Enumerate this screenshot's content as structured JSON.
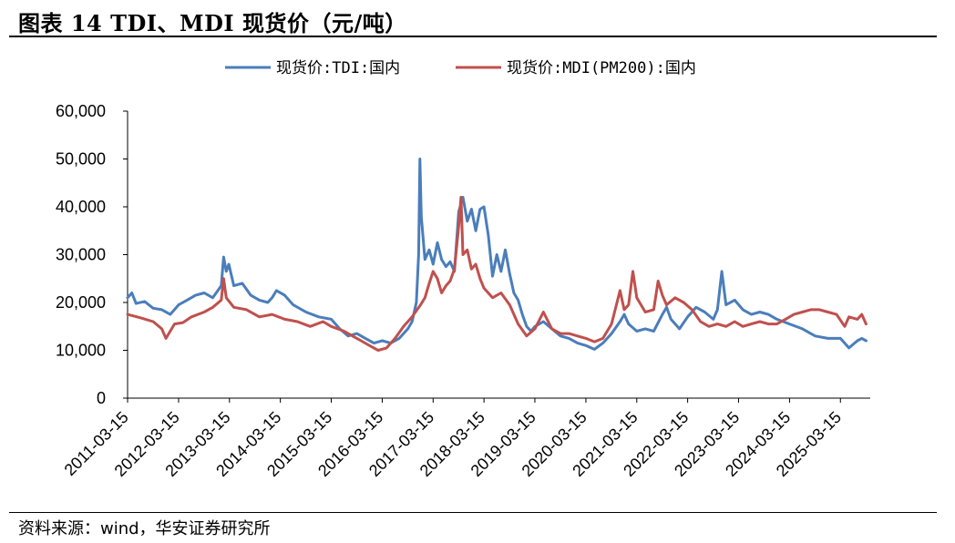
{
  "header": {
    "title": "图表 14 TDI、MDI 现货价（元/吨）"
  },
  "footer": {
    "source": "资料来源：wind，华安证券研究所"
  },
  "chart_data": {
    "type": "line",
    "title": "图表 14 TDI、MDI 现货价（元/吨）",
    "xlabel": "",
    "ylabel": "",
    "ylim": [
      0,
      60000
    ],
    "xlim": [
      "2011-03-15",
      "2025-10-15"
    ],
    "yticks": [
      "0",
      "10,000",
      "20,000",
      "30,000",
      "40,000",
      "50,000",
      "60,000"
    ],
    "xticks": [
      "2011-03-15",
      "2012-03-15",
      "2013-03-15",
      "2014-03-15",
      "2015-03-15",
      "2016-03-15",
      "2017-03-15",
      "2018-03-15",
      "2019-03-15",
      "2020-03-15",
      "2021-03-15",
      "2022-03-15",
      "2023-03-15",
      "2024-03-15",
      "2025-03-15"
    ],
    "grid": false,
    "legend_position": "top",
    "series": [
      {
        "name": "现货价:TDI:国内",
        "color": "#4a7ebb",
        "points": [
          [
            "2011-03-15",
            21000
          ],
          [
            "2011-04-15",
            22000
          ],
          [
            "2011-05-15",
            19800
          ],
          [
            "2011-07-15",
            20200
          ],
          [
            "2011-09-15",
            18800
          ],
          [
            "2011-11-15",
            18500
          ],
          [
            "2012-01-15",
            17500
          ],
          [
            "2012-03-15",
            19500
          ],
          [
            "2012-05-15",
            20500
          ],
          [
            "2012-07-15",
            21500
          ],
          [
            "2012-09-15",
            22000
          ],
          [
            "2012-11-15",
            21000
          ],
          [
            "2013-01-15",
            23500
          ],
          [
            "2013-02-01",
            29500
          ],
          [
            "2013-02-20",
            26500
          ],
          [
            "2013-03-10",
            28000
          ],
          [
            "2013-04-15",
            23500
          ],
          [
            "2013-06-15",
            24000
          ],
          [
            "2013-08-15",
            21500
          ],
          [
            "2013-10-15",
            20500
          ],
          [
            "2013-12-15",
            20000
          ],
          [
            "2014-01-15",
            21000
          ],
          [
            "2014-02-15",
            22500
          ],
          [
            "2014-04-15",
            21500
          ],
          [
            "2014-06-15",
            19500
          ],
          [
            "2014-09-15",
            18000
          ],
          [
            "2014-12-15",
            17000
          ],
          [
            "2015-03-15",
            16500
          ],
          [
            "2015-05-15",
            14500
          ],
          [
            "2015-07-15",
            13000
          ],
          [
            "2015-09-15",
            13500
          ],
          [
            "2015-11-15",
            12500
          ],
          [
            "2016-01-15",
            11500
          ],
          [
            "2016-03-15",
            12000
          ],
          [
            "2016-05-15",
            11500
          ],
          [
            "2016-07-15",
            12500
          ],
          [
            "2016-09-15",
            14500
          ],
          [
            "2016-10-15",
            16000
          ],
          [
            "2016-11-15",
            20000
          ],
          [
            "2016-12-01",
            30000
          ],
          [
            "2016-12-10",
            50000
          ],
          [
            "2016-12-20",
            38000
          ],
          [
            "2017-01-15",
            29000
          ],
          [
            "2017-02-15",
            31000
          ],
          [
            "2017-03-15",
            28000
          ],
          [
            "2017-04-15",
            32500
          ],
          [
            "2017-05-15",
            29000
          ],
          [
            "2017-06-15",
            27500
          ],
          [
            "2017-07-15",
            28500
          ],
          [
            "2017-08-15",
            26500
          ],
          [
            "2017-09-15",
            39000
          ],
          [
            "2017-10-15",
            42000
          ],
          [
            "2017-11-15",
            37000
          ],
          [
            "2017-12-15",
            39500
          ],
          [
            "2018-01-15",
            35000
          ],
          [
            "2018-02-15",
            39500
          ],
          [
            "2018-03-15",
            40000
          ],
          [
            "2018-04-15",
            34000
          ],
          [
            "2018-05-15",
            25500
          ],
          [
            "2018-06-15",
            30000
          ],
          [
            "2018-07-15",
            26500
          ],
          [
            "2018-08-15",
            31000
          ],
          [
            "2018-09-15",
            26000
          ],
          [
            "2018-10-15",
            22000
          ],
          [
            "2018-11-15",
            20500
          ],
          [
            "2018-12-15",
            17500
          ],
          [
            "2019-01-15",
            15000
          ],
          [
            "2019-02-15",
            14000
          ],
          [
            "2019-03-15",
            15000
          ],
          [
            "2019-05-15",
            16000
          ],
          [
            "2019-07-15",
            14500
          ],
          [
            "2019-09-15",
            13000
          ],
          [
            "2019-11-15",
            12500
          ],
          [
            "2020-01-15",
            11500
          ],
          [
            "2020-03-15",
            11000
          ],
          [
            "2020-05-15",
            10200
          ],
          [
            "2020-07-15",
            11500
          ],
          [
            "2020-09-15",
            13500
          ],
          [
            "2020-11-15",
            16000
          ],
          [
            "2020-12-15",
            17500
          ],
          [
            "2021-01-15",
            15500
          ],
          [
            "2021-03-15",
            14000
          ],
          [
            "2021-05-15",
            14500
          ],
          [
            "2021-07-15",
            14000
          ],
          [
            "2021-09-15",
            17500
          ],
          [
            "2021-10-15",
            19000
          ],
          [
            "2021-11-15",
            16500
          ],
          [
            "2022-01-15",
            14500
          ],
          [
            "2022-03-15",
            17000
          ],
          [
            "2022-05-15",
            19000
          ],
          [
            "2022-07-15",
            18000
          ],
          [
            "2022-09-15",
            16500
          ],
          [
            "2022-10-15",
            18500
          ],
          [
            "2022-11-15",
            26500
          ],
          [
            "2022-12-15",
            19500
          ],
          [
            "2023-02-15",
            20500
          ],
          [
            "2023-04-15",
            18500
          ],
          [
            "2023-06-15",
            17500
          ],
          [
            "2023-08-15",
            18000
          ],
          [
            "2023-10-15",
            17500
          ],
          [
            "2023-12-15",
            16500
          ],
          [
            "2024-03-15",
            15500
          ],
          [
            "2024-06-15",
            14500
          ],
          [
            "2024-09-15",
            13000
          ],
          [
            "2024-12-15",
            12500
          ],
          [
            "2025-03-15",
            12500
          ],
          [
            "2025-05-15",
            10500
          ],
          [
            "2025-07-15",
            12000
          ],
          [
            "2025-08-15",
            12500
          ],
          [
            "2025-09-15",
            12000
          ]
        ]
      },
      {
        "name": "现货价:MDI(PM200):国内",
        "color": "#c0504d",
        "points": [
          [
            "2011-03-15",
            17500
          ],
          [
            "2011-06-15",
            16800
          ],
          [
            "2011-09-15",
            16000
          ],
          [
            "2011-11-15",
            14500
          ],
          [
            "2011-12-15",
            12500
          ],
          [
            "2012-02-15",
            15500
          ],
          [
            "2012-04-15",
            15800
          ],
          [
            "2012-06-15",
            17000
          ],
          [
            "2012-09-15",
            18000
          ],
          [
            "2012-11-15",
            19000
          ],
          [
            "2013-01-15",
            20500
          ],
          [
            "2013-02-01",
            25000
          ],
          [
            "2013-02-20",
            21000
          ],
          [
            "2013-04-15",
            19000
          ],
          [
            "2013-07-15",
            18500
          ],
          [
            "2013-10-15",
            17000
          ],
          [
            "2014-01-15",
            17500
          ],
          [
            "2014-04-15",
            16500
          ],
          [
            "2014-07-15",
            16000
          ],
          [
            "2014-10-15",
            15000
          ],
          [
            "2015-01-15",
            16000
          ],
          [
            "2015-03-15",
            15000
          ],
          [
            "2015-06-15",
            14000
          ],
          [
            "2015-08-15",
            13000
          ],
          [
            "2015-10-15",
            12000
          ],
          [
            "2015-12-15",
            11000
          ],
          [
            "2016-02-15",
            10000
          ],
          [
            "2016-04-15",
            10500
          ],
          [
            "2016-06-15",
            12500
          ],
          [
            "2016-08-15",
            15000
          ],
          [
            "2016-10-15",
            17000
          ],
          [
            "2016-12-15",
            19500
          ],
          [
            "2017-01-15",
            21000
          ],
          [
            "2017-02-15",
            24000
          ],
          [
            "2017-03-15",
            26500
          ],
          [
            "2017-04-15",
            25000
          ],
          [
            "2017-05-15",
            22000
          ],
          [
            "2017-06-15",
            23500
          ],
          [
            "2017-07-15",
            24500
          ],
          [
            "2017-08-15",
            27000
          ],
          [
            "2017-09-15",
            36000
          ],
          [
            "2017-10-01",
            42000
          ],
          [
            "2017-10-15",
            30000
          ],
          [
            "2017-11-15",
            31000
          ],
          [
            "2017-12-15",
            27000
          ],
          [
            "2018-01-15",
            28000
          ],
          [
            "2018-02-15",
            25000
          ],
          [
            "2018-03-15",
            23000
          ],
          [
            "2018-05-15",
            21000
          ],
          [
            "2018-07-15",
            22000
          ],
          [
            "2018-09-15",
            19500
          ],
          [
            "2018-11-15",
            15500
          ],
          [
            "2019-01-15",
            13000
          ],
          [
            "2019-03-15",
            14500
          ],
          [
            "2019-05-15",
            18000
          ],
          [
            "2019-07-15",
            14500
          ],
          [
            "2019-09-15",
            13500
          ],
          [
            "2019-11-15",
            13500
          ],
          [
            "2020-01-15",
            13000
          ],
          [
            "2020-03-15",
            12500
          ],
          [
            "2020-05-15",
            11800
          ],
          [
            "2020-07-15",
            12500
          ],
          [
            "2020-09-15",
            15500
          ],
          [
            "2020-11-15",
            22500
          ],
          [
            "2020-12-15",
            18500
          ],
          [
            "2021-01-15",
            19500
          ],
          [
            "2021-02-15",
            26500
          ],
          [
            "2021-03-15",
            21000
          ],
          [
            "2021-05-15",
            18000
          ],
          [
            "2021-07-15",
            18500
          ],
          [
            "2021-08-15",
            24500
          ],
          [
            "2021-09-15",
            21500
          ],
          [
            "2021-10-15",
            19500
          ],
          [
            "2021-12-15",
            21000
          ],
          [
            "2022-02-15",
            20000
          ],
          [
            "2022-04-15",
            18500
          ],
          [
            "2022-06-15",
            16000
          ],
          [
            "2022-08-15",
            15000
          ],
          [
            "2022-10-15",
            15500
          ],
          [
            "2022-12-15",
            15000
          ],
          [
            "2023-02-15",
            16000
          ],
          [
            "2023-04-15",
            15000
          ],
          [
            "2023-06-15",
            15500
          ],
          [
            "2023-08-15",
            16000
          ],
          [
            "2023-10-15",
            15500
          ],
          [
            "2023-12-15",
            15500
          ],
          [
            "2024-02-15",
            16500
          ],
          [
            "2024-04-15",
            17500
          ],
          [
            "2024-06-15",
            18000
          ],
          [
            "2024-08-15",
            18500
          ],
          [
            "2024-10-15",
            18500
          ],
          [
            "2024-12-15",
            18000
          ],
          [
            "2025-02-15",
            17500
          ],
          [
            "2025-04-15",
            15000
          ],
          [
            "2025-05-15",
            17000
          ],
          [
            "2025-07-15",
            16500
          ],
          [
            "2025-08-15",
            17500
          ],
          [
            "2025-09-15",
            15500
          ]
        ]
      }
    ]
  }
}
